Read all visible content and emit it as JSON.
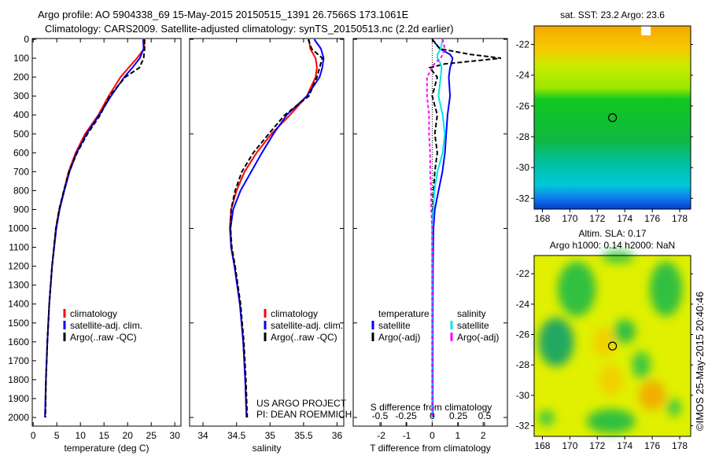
{
  "title": {
    "line1": "Argo profile: AO 5904338_69 15-May-2015 20150515_1391 26.7566S 173.1061E",
    "line2": "Climatology: CARS2009. Satellite-adjusted climatology: synTS_20150513.nc (2.2d earlier)"
  },
  "colors": {
    "climatology": "#ff0000",
    "satellite": "#0000ff",
    "argo": "#000000",
    "sal_satellite": "#00e5ee",
    "sal_argo": "#ff00ff"
  },
  "credits": {
    "project": "US ARGO PROJECT",
    "pi": "PI: DEAN ROEMMICH",
    "stamp": "©IMOS 25-May-2015 20:40:46"
  },
  "chart_data": [
    {
      "type": "line",
      "name": "temperature",
      "xlabel": "temperature (deg C)",
      "ylabel": "",
      "xlim": [
        -0.2,
        31.3
      ],
      "ylim": [
        2050,
        0
      ],
      "xticks": [
        0,
        5,
        10,
        15,
        20,
        25,
        30
      ],
      "yticks": [
        0,
        100,
        200,
        300,
        400,
        500,
        600,
        700,
        800,
        900,
        1000,
        1100,
        1200,
        1300,
        1400,
        1500,
        1600,
        1700,
        1800,
        1900,
        2000
      ],
      "legend": [
        "climatology",
        "satellite-adj. clim.",
        "Argo(..raw -QC)"
      ],
      "depth": [
        0,
        50,
        100,
        150,
        200,
        300,
        400,
        500,
        600,
        700,
        800,
        900,
        1000,
        1200,
        1400,
        1600,
        1800,
        2000
      ],
      "series": [
        {
          "name": "climatology",
          "values": [
            23.5,
            23.5,
            22,
            20.2,
            18.5,
            16,
            13.8,
            11,
            9,
            7.5,
            6.5,
            5.5,
            4.8,
            4,
            3.4,
            3,
            2.7,
            2.5
          ]
        },
        {
          "name": "satellite-adj. clim.",
          "values": [
            23.3,
            23.4,
            22.6,
            21,
            19.3,
            16.5,
            14,
            11.3,
            9.2,
            7.7,
            6.6,
            5.6,
            4.9,
            4,
            3.4,
            3,
            2.7,
            2.5
          ]
        },
        {
          "name": "Argo(..raw -QC)",
          "values": [
            23.6,
            23.6,
            23.4,
            22.5,
            19.5,
            16.2,
            14.2,
            11.5,
            9.3,
            7.6,
            6.5,
            5.5,
            4.8,
            4,
            3.4,
            3,
            2.7,
            2.6
          ]
        }
      ]
    },
    {
      "type": "line",
      "name": "salinity",
      "xlabel": "salinity",
      "xlim": [
        33.8,
        36.1
      ],
      "ylim": [
        2050,
        0
      ],
      "xticks": [
        34,
        34.5,
        35,
        35.5,
        36
      ],
      "legend": [
        "climatology",
        "satellite-adj. clim.",
        "Argo(..raw -QC)"
      ],
      "depth": [
        0,
        50,
        100,
        150,
        200,
        300,
        400,
        500,
        600,
        700,
        800,
        900,
        1000,
        1100,
        1200,
        1400,
        1600,
        1800,
        2000
      ],
      "series": [
        {
          "name": "climatology",
          "values": [
            35.58,
            35.6,
            35.68,
            35.7,
            35.68,
            35.55,
            35.3,
            35.02,
            34.8,
            34.62,
            34.5,
            34.42,
            34.4,
            34.42,
            34.47,
            34.55,
            34.6,
            34.63,
            34.65
          ]
        },
        {
          "name": "satellite-adj. clim.",
          "values": [
            35.66,
            35.76,
            35.8,
            35.78,
            35.74,
            35.55,
            35.25,
            35.05,
            34.88,
            34.72,
            34.56,
            34.45,
            34.41,
            34.42,
            34.47,
            34.55,
            34.6,
            34.63,
            34.65
          ]
        },
        {
          "name": "Argo(..raw -QC)",
          "values": [
            35.57,
            35.62,
            35.78,
            35.74,
            35.7,
            35.58,
            35.22,
            34.98,
            34.75,
            34.58,
            34.48,
            34.42,
            34.41,
            34.43,
            34.48,
            34.56,
            34.61,
            34.64,
            34.66
          ]
        }
      ]
    },
    {
      "type": "line",
      "name": "difference",
      "xlabel": "T difference from climatology",
      "xlabel2": "S difference from climatology",
      "xlim": [
        -3.1,
        2.95
      ],
      "xticks": [
        -2,
        -1,
        0,
        1,
        2
      ],
      "x2ticks": [
        -0.5,
        -0.25,
        0,
        0.25,
        0.5
      ],
      "x2ticklabels": [
        "-0.5",
        "-0.25",
        "0",
        "0.25",
        "0.5"
      ],
      "ylim": [
        2050,
        0
      ],
      "legend_headers": [
        "temperature",
        "salinity"
      ],
      "legend": [
        "satellite",
        "Argo(-adj)",
        "satellite",
        "Argo(-adj)"
      ],
      "depth": [
        0,
        50,
        80,
        100,
        130,
        150,
        200,
        300,
        400,
        500,
        600,
        700,
        800,
        900,
        1000,
        1200,
        1500,
        2000
      ],
      "series": [
        {
          "name": "T satellite",
          "axis": "T",
          "values": [
            0,
            0.3,
            0.7,
            0.8,
            0.75,
            0.7,
            0.65,
            0.7,
            0.6,
            0.55,
            0.5,
            0.4,
            0.25,
            0.1,
            0.05,
            0.03,
            0.02,
            0.02
          ]
        },
        {
          "name": "T Argo(-adj)",
          "axis": "T",
          "values": [
            0,
            0.3,
            1.5,
            2.7,
            0.5,
            -0.1,
            0.2,
            0,
            0.2,
            0.1,
            0.2,
            0.1,
            0.05,
            0.02,
            0,
            0,
            0,
            0
          ]
        },
        {
          "name": "S satellite",
          "axis": "S",
          "values": [
            0.1,
            0.08,
            0.05,
            0.05,
            0.08,
            0.09,
            0.08,
            0.06,
            0.1,
            0.12,
            0.1,
            0.05,
            0.02,
            0.01,
            0,
            0,
            0,
            0
          ]
        },
        {
          "name": "S Argo(-adj)",
          "axis": "S",
          "values": [
            0.1,
            0.12,
            0.1,
            0.08,
            0.02,
            0,
            -0.05,
            -0.05,
            -0.03,
            -0.03,
            -0.02,
            -0.02,
            -0.01,
            -0.01,
            0,
            0,
            0,
            0
          ]
        }
      ]
    },
    {
      "type": "heatmap",
      "name": "sst-map",
      "title": "sat. SST: 23.2  Argo: 23.6",
      "xlim": [
        167.4,
        178.8
      ],
      "ylim": [
        -32.7,
        -20.8
      ],
      "xticks": [
        168,
        170,
        172,
        174,
        176,
        178
      ],
      "yticks": [
        -22,
        -24,
        -26,
        -28,
        -30,
        -32
      ],
      "marker": [
        173.1061,
        -26.7566
      ]
    },
    {
      "type": "heatmap",
      "name": "sla-map",
      "title": "Altim. SLA: 0.17",
      "subtitle": "Argo h1000: 0.14 h2000: NaN",
      "xlim": [
        167.4,
        178.8
      ],
      "ylim": [
        -32.7,
        -20.8
      ],
      "xticks": [
        168,
        170,
        172,
        174,
        176,
        178
      ],
      "yticks": [
        -22,
        -24,
        -26,
        -28,
        -30,
        -32
      ],
      "marker": [
        173.1061,
        -26.7566
      ]
    }
  ]
}
